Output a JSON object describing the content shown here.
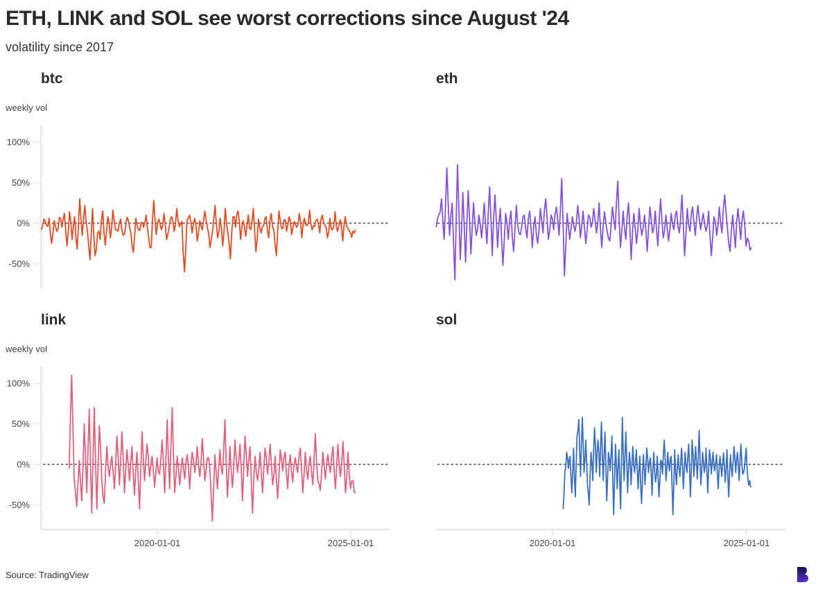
{
  "header": {
    "title": "ETH, LINK and SOL see worst corrections since August '24",
    "subtitle": "volatility since 2017"
  },
  "footer": {
    "source": "Source: TradingView",
    "logo_icon": "brand-b-logo"
  },
  "chart_data": [
    {
      "type": "line",
      "title": "btc",
      "color": "#e34a22",
      "ylabel": "weekly vol",
      "xlabel": "",
      "x_ticks": [
        "2020-01-01",
        "2025-01-01"
      ],
      "y_ticks": [
        "100%",
        "50%",
        "0%",
        "-50%"
      ],
      "ylim": [
        -80,
        120
      ],
      "xlim": [
        "2016-12-20",
        "2025-12-01"
      ],
      "reference_line": {
        "y": 0,
        "style": "dashed"
      },
      "x_start": "2017-01-01",
      "x_end": "2025-02-15",
      "values": [
        -8,
        5,
        -3,
        6,
        -25,
        3,
        -10,
        7,
        -5,
        12,
        -28,
        14,
        -20,
        8,
        -32,
        30,
        -15,
        22,
        -10,
        -45,
        18,
        -40,
        -12,
        -20,
        15,
        -27,
        8,
        -18,
        16,
        -8,
        -10,
        5,
        -15,
        -3,
        4,
        -12,
        -36,
        6,
        -8,
        0,
        -5,
        10,
        -18,
        -30,
        28,
        -14,
        5,
        -8,
        12,
        -20,
        -5,
        8,
        -10,
        18,
        -4,
        2,
        -60,
        4,
        10,
        -12,
        6,
        -22,
        3,
        -8,
        15,
        -6,
        -30,
        -10,
        22,
        -18,
        6,
        -28,
        18,
        -12,
        -44,
        8,
        -5,
        15,
        -20,
        3,
        -16,
        10,
        -8,
        18,
        -35,
        5,
        -12,
        -3,
        8,
        -18,
        12,
        -8,
        -40,
        15,
        -6,
        4,
        -10,
        8,
        -14,
        2,
        -5,
        12,
        -18,
        6,
        -3,
        16,
        -8,
        -4,
        5,
        -12,
        10,
        -2,
        -18,
        6,
        -8,
        14,
        -10,
        4,
        -22,
        8,
        -6,
        -12,
        -10,
        -8
      ]
    },
    {
      "type": "line",
      "title": "eth",
      "color": "#8450dc",
      "ylabel": "",
      "xlabel": "",
      "x_ticks": [
        "2020-01-01",
        "2025-01-01"
      ],
      "y_ticks": [
        "100%",
        "50%",
        "0%",
        "-50%"
      ],
      "ylim": [
        -80,
        120
      ],
      "xlim": [
        "2016-12-20",
        "2025-12-01"
      ],
      "reference_line": {
        "y": 0,
        "style": "dashed"
      },
      "x_start": "2017-01-01",
      "x_end": "2025-02-15",
      "values": [
        -5,
        10,
        30,
        -20,
        68,
        -15,
        25,
        -70,
        72,
        -45,
        38,
        -48,
        40,
        -38,
        25,
        -15,
        10,
        -18,
        25,
        -25,
        45,
        -40,
        35,
        -30,
        18,
        -52,
        12,
        -20,
        15,
        -35,
        22,
        -12,
        -5,
        10,
        -18,
        15,
        -30,
        8,
        -25,
        18,
        -12,
        30,
        -20,
        10,
        -8,
        20,
        -15,
        55,
        -65,
        12,
        -20,
        8,
        -10,
        22,
        -18,
        15,
        -25,
        10,
        -5,
        18,
        -12,
        25,
        -30,
        14,
        -10,
        -22,
        20,
        -8,
        52,
        -30,
        15,
        -20,
        25,
        -45,
        12,
        -25,
        18,
        -15,
        10,
        -35,
        20,
        -12,
        15,
        -28,
        30,
        -18,
        10,
        -22,
        12,
        -8,
        15,
        -12,
        35,
        -40,
        18,
        -10,
        20,
        -15,
        22,
        -8,
        12,
        -10,
        15,
        -40,
        8,
        -15,
        20,
        -12,
        35,
        -5,
        -35,
        10,
        -30,
        18,
        -20,
        15,
        -28,
        -22,
        -30
      ]
    },
    {
      "type": "line",
      "title": "link",
      "color": "#e0607c",
      "ylabel": "weekly vol",
      "xlabel": "",
      "x_ticks": [
        "2020-01-01",
        "2025-01-01"
      ],
      "y_ticks": [
        "100%",
        "50%",
        "0%",
        "-50%"
      ],
      "ylim": [
        -80,
        120
      ],
      "xlim": [
        "2016-12-20",
        "2025-12-01"
      ],
      "reference_line": {
        "y": 0,
        "style": "dashed"
      },
      "x_start": "2017-09-20",
      "x_end": "2025-02-15",
      "values": [
        -5,
        110,
        -18,
        -52,
        5,
        -45,
        50,
        -35,
        68,
        -60,
        70,
        -55,
        48,
        -20,
        -48,
        22,
        -15,
        10,
        -30,
        35,
        -25,
        40,
        -35,
        18,
        -20,
        22,
        -38,
        15,
        -55,
        40,
        -20,
        25,
        -15,
        10,
        -28,
        8,
        -12,
        30,
        -35,
        55,
        -30,
        70,
        -35,
        10,
        -25,
        8,
        -18,
        12,
        -30,
        15,
        -10,
        22,
        -15,
        32,
        -20,
        8,
        -5,
        -70,
        12,
        -30,
        18,
        -12,
        55,
        -40,
        22,
        -28,
        30,
        -10,
        25,
        -45,
        35,
        -15,
        22,
        -60,
        10,
        -20,
        15,
        -35,
        20,
        -12,
        25,
        -25,
        10,
        -42,
        18,
        -8,
        15,
        -30,
        12,
        -22,
        8,
        -10,
        20,
        -35,
        15,
        -18,
        10,
        -25,
        38,
        -20,
        -32,
        15,
        -18,
        12,
        -10,
        22,
        -30,
        25,
        -15,
        28,
        -35,
        15,
        -30,
        -20,
        -35
      ]
    },
    {
      "type": "line",
      "title": "sol",
      "color": "#3b6fbf",
      "ylabel": "",
      "xlabel": "",
      "x_ticks": [
        "2020-01-01",
        "2025-01-01"
      ],
      "y_ticks": [],
      "ylim": [
        -80,
        120
      ],
      "xlim": [
        "2016-12-20",
        "2025-12-01"
      ],
      "reference_line": {
        "y": 0,
        "style": "dashed"
      },
      "x_start": "2020-04-10",
      "x_end": "2025-02-15",
      "values": [
        -55,
        -10,
        15,
        -5,
        10,
        -35,
        20,
        -40,
        35,
        55,
        -15,
        58,
        -10,
        30,
        -25,
        -50,
        15,
        -20,
        45,
        -10,
        30,
        -15,
        52,
        -20,
        40,
        -45,
        15,
        -8,
        35,
        -62,
        25,
        -30,
        18,
        -55,
        58,
        -20,
        40,
        -35,
        15,
        -25,
        22,
        -10,
        18,
        -30,
        10,
        -48,
        12,
        -25,
        20,
        -10,
        8,
        -38,
        15,
        -22,
        10,
        -40,
        5,
        -12,
        30,
        -20,
        15,
        -8,
        10,
        -62,
        18,
        -25,
        12,
        -15,
        20,
        -30,
        15,
        -10,
        25,
        -40,
        30,
        -15,
        22,
        -18,
        42,
        -25,
        15,
        -10,
        20,
        -35,
        18,
        -12,
        15,
        -8,
        12,
        -30,
        10,
        -15,
        14,
        -22,
        18,
        -40,
        12,
        -15,
        22,
        -10,
        15,
        -20,
        25,
        -12,
        -5,
        20,
        -18,
        -20,
        -28
      ]
    }
  ]
}
